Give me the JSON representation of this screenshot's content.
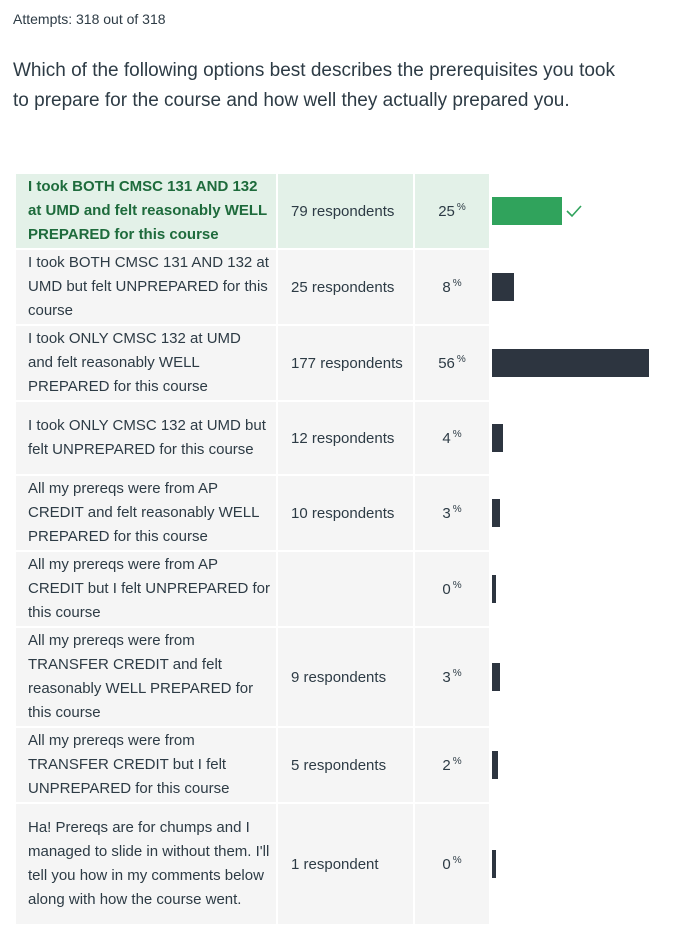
{
  "attempts_text": "Attempts: 318 out of 318",
  "question_text": "Which of the following options best describes the prerequisites you took to prepare for the course and how well they actually prepared you.",
  "percent_symbol": "%",
  "colors": {
    "correct_bar": "#30a35c",
    "bar": "#2d3540",
    "correct_row_bg": "#e3f1e8",
    "correct_text": "#1e6b3c",
    "row_bg": "#f5f5f5"
  },
  "answers": [
    {
      "label": "I took BOTH CMSC 131 AND 132 at UMD and felt reasonably WELL PREPARED for this course",
      "respondents": "79 respondents",
      "percent": "25",
      "fraction": 0.25,
      "correct": true
    },
    {
      "label": "I took BOTH CMSC 131 AND 132 at UMD but felt UNPREPARED for this course",
      "respondents": "25 respondents",
      "percent": "8",
      "fraction": 0.08,
      "correct": false
    },
    {
      "label": "I took ONLY CMSC 132 at UMD and felt reasonably WELL PREPARED for this course",
      "respondents": "177 respondents",
      "percent": "56",
      "fraction": 0.56,
      "correct": false
    },
    {
      "label": "I took ONLY CMSC 132 at UMD but felt UNPREPARED for this course",
      "respondents": "12 respondents",
      "percent": "4",
      "fraction": 0.04,
      "correct": false
    },
    {
      "label": "All my prereqs were from AP CREDIT and felt reasonably WELL PREPARED for this course",
      "respondents": "10 respondents",
      "percent": "3",
      "fraction": 0.03,
      "correct": false
    },
    {
      "label": "All my prereqs were from AP CREDIT but I felt UNPREPARED for this course",
      "respondents": "",
      "percent": "0",
      "fraction": 0.0,
      "correct": false
    },
    {
      "label": "All my prereqs were from TRANSFER CREDIT and felt reasonably WELL PREPARED for this course",
      "respondents": "9 respondents",
      "percent": "3",
      "fraction": 0.03,
      "correct": false
    },
    {
      "label": "All my prereqs were from TRANSFER CREDIT but I felt UNPREPARED for this course",
      "respondents": "5 respondents",
      "percent": "2",
      "fraction": 0.02,
      "correct": false
    },
    {
      "label": "Ha! Prereqs are for chumps and I managed to slide in without them. I'll tell you how in my comments below along with how the course went.",
      "respondents": "1 respondent",
      "percent": "0",
      "fraction": 0.0,
      "correct": false
    }
  ]
}
